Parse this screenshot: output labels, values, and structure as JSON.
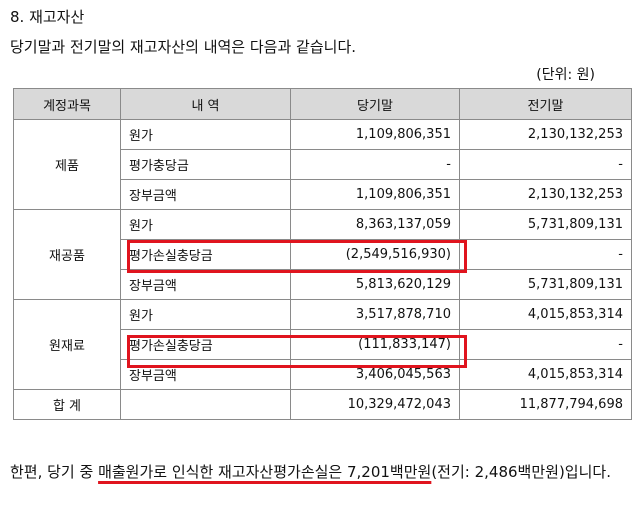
{
  "heading": "8. 재고자산",
  "intro": "당기말과 전기말의 재고자산의 내역은 다음과 같습니다.",
  "unit": "(단위: 원)",
  "table": {
    "headers": [
      "계정과목",
      "내 역",
      "당기말",
      "전기말"
    ],
    "groups": [
      {
        "category": "제품",
        "rows": [
          {
            "item": "원가",
            "current": "1,109,806,351",
            "prior": "2,130,132,253"
          },
          {
            "item": "평가충당금",
            "current": "-",
            "prior": "-"
          },
          {
            "item": "장부금액",
            "current": "1,109,806,351",
            "prior": "2,130,132,253"
          }
        ]
      },
      {
        "category": "재공품",
        "rows": [
          {
            "item": "원가",
            "current": "8,363,137,059",
            "prior": "5,731,809,131"
          },
          {
            "item": "평가손실충당금",
            "current": "(2,549,516,930)",
            "prior": "-"
          },
          {
            "item": "장부금액",
            "current": "5,813,620,129",
            "prior": "5,731,809,131"
          }
        ]
      },
      {
        "category": "원재료",
        "rows": [
          {
            "item": "원가",
            "current": "3,517,878,710",
            "prior": "4,015,853,314"
          },
          {
            "item": "평가손실충당금",
            "current": "(111,833,147)",
            "prior": "-"
          },
          {
            "item": "장부금액",
            "current": "3,406,045,563",
            "prior": "4,015,853,314"
          }
        ]
      }
    ],
    "total": {
      "label": "합 계",
      "item": "",
      "current": "10,329,472,043",
      "prior": "11,877,794,698"
    }
  },
  "footnote": {
    "prefix": "한편, 당기 중 ",
    "underlined": "매출원가로 인식한 재고자산평가손실은 7,201백만원",
    "suffix": "(전기: 2,486백만원)입니다."
  },
  "highlight_color": "#e0141e"
}
